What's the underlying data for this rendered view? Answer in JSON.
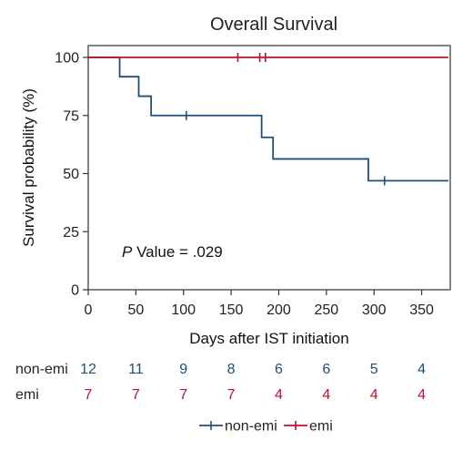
{
  "chart_data": {
    "type": "line",
    "subtype": "kaplan-meier",
    "title": "Overall Survival",
    "xlabel": "Days after IST initiation",
    "ylabel": "Survival probability (%)",
    "xlim": [
      0,
      380
    ],
    "ylim": [
      0,
      100
    ],
    "xticks": [
      0,
      50,
      100,
      150,
      200,
      250,
      300,
      350
    ],
    "yticks": [
      0,
      25,
      50,
      75,
      100
    ],
    "annotation": {
      "italic": "P",
      "rest": " Value = .029"
    },
    "series": [
      {
        "name": "non-emi",
        "color": "#1f4e79",
        "steps": [
          [
            0,
            100
          ],
          [
            33,
            91.7
          ],
          [
            53,
            83.3
          ],
          [
            66,
            75
          ],
          [
            182,
            65.6
          ],
          [
            194,
            56.3
          ],
          [
            294,
            46.9
          ],
          [
            378,
            46.9
          ]
        ],
        "censor": [
          [
            103,
            75
          ],
          [
            311,
            46.9
          ]
        ]
      },
      {
        "name": "emi",
        "color": "#c0102a",
        "steps": [
          [
            0,
            100
          ],
          [
            378,
            100
          ]
        ],
        "censor": [
          [
            157,
            100
          ],
          [
            180,
            100
          ],
          [
            186,
            100
          ]
        ]
      }
    ],
    "risk_table": {
      "times": [
        0,
        50,
        100,
        150,
        200,
        250,
        300,
        350
      ],
      "rows": [
        {
          "label": "non-emi",
          "color": "#1f4e79",
          "values": [
            12,
            11,
            9,
            8,
            6,
            6,
            5,
            4
          ]
        },
        {
          "label": "emi",
          "color": "#c0102a",
          "values": [
            7,
            7,
            7,
            7,
            4,
            4,
            4,
            4
          ]
        }
      ]
    },
    "legend": {
      "position": "bottom-center",
      "entries": [
        "non-emi",
        "emi"
      ]
    }
  }
}
